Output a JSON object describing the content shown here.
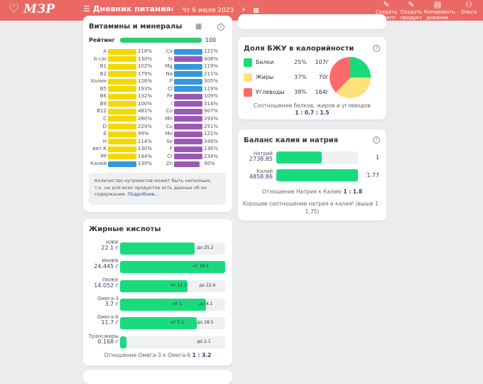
{
  "header": {
    "logo": "МЗР",
    "title": "Дневник питания",
    "date": "Чт 6 июля 2023",
    "prev": "‹",
    "next": "›",
    "actions": [
      {
        "label": "Создать рецепт"
      },
      {
        "label": "Создать продукт"
      },
      {
        "label": "Копировать дневник"
      },
      {
        "label": "Ольга"
      }
    ]
  },
  "vitamins": {
    "title": "Витамины и минералы",
    "rating_label": "Рейтинг",
    "rating": "100",
    "rating_value": 100,
    "left": [
      {
        "n": "A",
        "p": "218%",
        "v": 218,
        "c": "#f5d800"
      },
      {
        "n": "b-car",
        "p": "130%",
        "v": 130,
        "c": "#f5d800"
      },
      {
        "n": "B1",
        "p": "102%",
        "v": 102,
        "c": "#f5d800"
      },
      {
        "n": "B2",
        "p": "179%",
        "v": 179,
        "c": "#f5d800"
      },
      {
        "n": "Холин",
        "p": "126%",
        "v": 126,
        "c": "#f5d800"
      },
      {
        "n": "B5",
        "p": "193%",
        "v": 193,
        "c": "#f5d800"
      },
      {
        "n": "B6",
        "p": "132%",
        "v": 132,
        "c": "#f5d800"
      },
      {
        "n": "B9",
        "p": "100%",
        "v": 100,
        "c": "#f5d800"
      },
      {
        "n": "B12",
        "p": "481%",
        "v": 481,
        "c": "#f5d800"
      },
      {
        "n": "C",
        "p": "280%",
        "v": 280,
        "c": "#f5d800"
      },
      {
        "n": "D",
        "p": "229%",
        "v": 229,
        "c": "#f5d800"
      },
      {
        "n": "E",
        "p": "99%",
        "v": 99,
        "c": "#f5d800"
      },
      {
        "n": "H",
        "p": "114%",
        "v": 114,
        "c": "#f5d800"
      },
      {
        "n": "вит.K",
        "p": "130%",
        "v": 130,
        "c": "#f5d800"
      },
      {
        "n": "PP",
        "p": "144%",
        "v": 144,
        "c": "#f5d800"
      },
      {
        "n": "Калий",
        "p": "139%",
        "v": 139,
        "c": "#3498db"
      }
    ],
    "right": [
      {
        "n": "Ca",
        "p": "122%",
        "v": 122,
        "c": "#3498db"
      },
      {
        "n": "Si",
        "p": "408%",
        "v": 408,
        "c": "#9b59b6"
      },
      {
        "n": "Mg",
        "p": "119%",
        "v": 119,
        "c": "#3498db"
      },
      {
        "n": "Na",
        "p": "211%",
        "v": 211,
        "c": "#3498db"
      },
      {
        "n": "P",
        "p": "305%",
        "v": 305,
        "c": "#3498db"
      },
      {
        "n": "Cl",
        "p": "119%",
        "v": 119,
        "c": "#3498db"
      },
      {
        "n": "Fe",
        "p": "109%",
        "v": 109,
        "c": "#9b59b6"
      },
      {
        "n": "I",
        "p": "314%",
        "v": 314,
        "c": "#9b59b6"
      },
      {
        "n": "Co",
        "p": "907%",
        "v": 907,
        "c": "#9b59b6"
      },
      {
        "n": "Mn",
        "p": "293%",
        "v": 293,
        "c": "#9b59b6"
      },
      {
        "n": "Cu",
        "p": "251%",
        "v": 251,
        "c": "#9b59b6"
      },
      {
        "n": "Mo",
        "p": "121%",
        "v": 121,
        "c": "#9b59b6"
      },
      {
        "n": "Se",
        "p": "349%",
        "v": 349,
        "c": "#9b59b6"
      },
      {
        "n": "F",
        "p": "136%",
        "v": 136,
        "c": "#9b59b6"
      },
      {
        "n": "Cr",
        "p": "234%",
        "v": 234,
        "c": "#9b59b6"
      },
      {
        "n": "Zn",
        "p": "90%",
        "v": 90,
        "c": "#9b59b6"
      }
    ],
    "note": "Количество нутриентов может быть неполным, т.к. не для всех продуктов есть данные об их содержании.",
    "note_link": "Подробнее..."
  },
  "fats": {
    "title": "Жирные кислоты",
    "rows": [
      {
        "n": "НЖК",
        "amt": "22.1 г",
        "fill": 0.71,
        "marks": [
          {
            "t": "до 25.2",
            "pos": 0.8
          }
        ]
      },
      {
        "n": "МНЖК",
        "amt": "24.445 г",
        "fill": 1.0,
        "marks": [
          {
            "t": "от 18.5",
            "pos": 0.76
          }
        ]
      },
      {
        "n": "ПНЖК",
        "amt": "14.052 г",
        "fill": 0.64,
        "marks": [
          {
            "t": "от 12.3",
            "pos": 0.55
          },
          {
            "t": "до 22.6",
            "pos": 0.82
          }
        ]
      },
      {
        "n": "Омега-3",
        "amt": "3.7 г",
        "fill": 0.82,
        "marks": [
          {
            "t": "от 1",
            "pos": 0.57
          },
          {
            "t": "до 4.1",
            "pos": 0.82
          }
        ]
      },
      {
        "n": "Омега-6",
        "amt": "11.7 г",
        "fill": 0.73,
        "marks": [
          {
            "t": "от 5.1",
            "pos": 0.55
          },
          {
            "t": "до 18.5",
            "pos": 0.8
          }
        ]
      },
      {
        "n": "Трансжиры",
        "amt": "0.168 г",
        "fill": 0.06,
        "marks": [
          {
            "t": "до 2.1",
            "pos": 0.8
          }
        ]
      }
    ],
    "ratio_label": "Отношение Омега-3 к Омега-6",
    "ratio": "1 : 3.2"
  },
  "bju": {
    "title": "Доля БЖУ в калорийности",
    "items": [
      {
        "n": "Белки",
        "p": "25%",
        "g": "107г",
        "v": 25,
        "c": "#19db7e"
      },
      {
        "n": "Жиры",
        "p": "37%",
        "g": "70г",
        "v": 37,
        "c": "#ffe07a"
      },
      {
        "n": "Углеводы",
        "p": "38%",
        "g": "164г",
        "v": 38,
        "c": "#ff6b6b"
      }
    ],
    "ratio_label": "Соотношение белков, жиров и углеводов",
    "ratio": "1 : 0.7 : 1.5"
  },
  "kna": {
    "title": "Баланс калия и натрия",
    "rows": [
      {
        "n": "Натрий",
        "amt": "2738.85",
        "r": "1",
        "fill": 0.56
      },
      {
        "n": "Калий",
        "amt": "4858.86",
        "r": "1.77",
        "fill": 1.0
      }
    ],
    "ratio_label": "Отношение Натрия к Калию",
    "ratio": "1 : 1.8",
    "note": "Хорошее соотношение натрия и калия! (выше 1 : 1,75)"
  }
}
